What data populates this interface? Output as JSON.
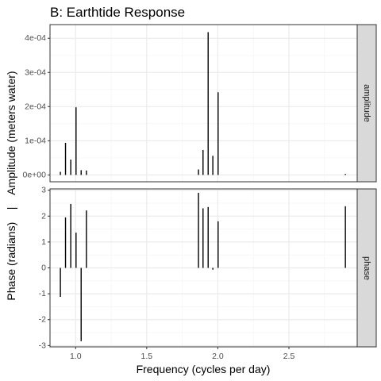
{
  "chart_data": {
    "type": "bar",
    "title": "B: Earthtide Response",
    "xlabel": "Frequency (cycles per day)",
    "ylabel": "Phase (radians)    |    Amplitude (meters water)",
    "xlim": [
      0.82,
      2.98
    ],
    "x_ticks": [
      1.0,
      1.5,
      2.0,
      2.5
    ],
    "x_tick_labels": [
      "1.0",
      "1.5",
      "2.0",
      "2.5"
    ],
    "grid": true,
    "panels": [
      {
        "strip": "amplitude",
        "ylim": [
          -2e-05,
          0.00044
        ],
        "y_ticks": [
          0,
          0.0001,
          0.0002,
          0.0003,
          0.0004
        ],
        "y_tick_labels": [
          "0e+00",
          "1e-04",
          "2e-04",
          "3e-04",
          "4e-04"
        ],
        "x": [
          0.893,
          0.929,
          0.966,
          1.003,
          1.039,
          1.076,
          1.864,
          1.896,
          1.932,
          1.965,
          2.002,
          2.897
        ],
        "values": [
          9e-06,
          9.4e-05,
          4.5e-05,
          0.000198,
          1.4e-05,
          1.3e-05,
          1.6e-05,
          7.3e-05,
          0.000418,
          5.6e-05,
          0.000242,
          3e-06
        ]
      },
      {
        "strip": "phase",
        "ylim": [
          -3.05,
          3.05
        ],
        "y_ticks": [
          -3,
          -2,
          -1,
          0,
          1,
          2,
          3
        ],
        "y_tick_labels": [
          "-3",
          "-2",
          "-1",
          "0",
          "1",
          "2",
          "3"
        ],
        "x": [
          0.893,
          0.929,
          0.966,
          1.003,
          1.039,
          1.076,
          1.864,
          1.896,
          1.932,
          1.965,
          2.002,
          2.897
        ],
        "values": [
          -1.12,
          1.95,
          2.47,
          1.36,
          -2.83,
          2.22,
          2.9,
          2.3,
          2.35,
          -0.07,
          1.8,
          2.38
        ]
      }
    ]
  },
  "colors": {
    "bars": "#000000",
    "strip_fill": "#d9d9d9",
    "panel_border": "#333333",
    "grid_major": "#ebebeb",
    "grid_minor": "#f5f5f5"
  }
}
